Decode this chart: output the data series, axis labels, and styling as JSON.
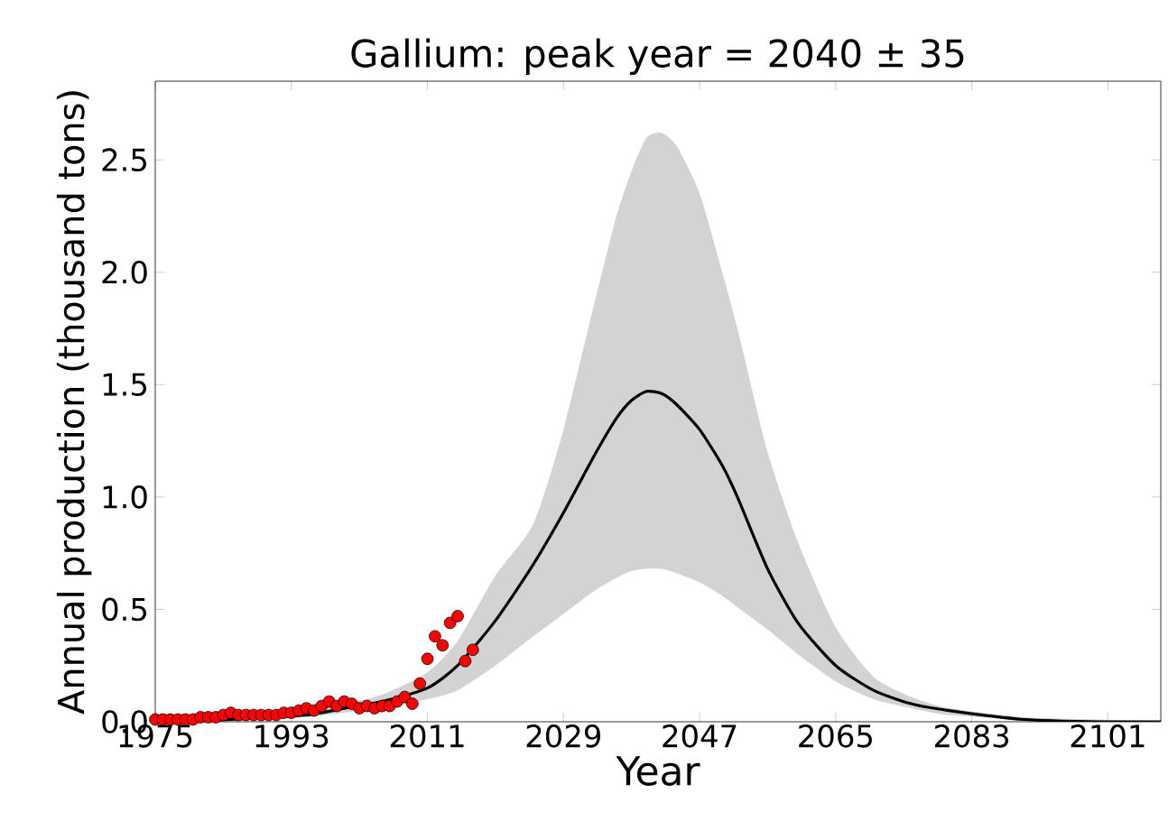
{
  "chart_data": {
    "type": "line",
    "title": "Gallium: peak year = 2040 ± 35",
    "xlabel": "Year",
    "ylabel": "Annual production (thousand tons)",
    "xlim": [
      1975,
      2108
    ],
    "ylim": [
      0,
      2.85
    ],
    "xticks": [
      1975,
      1993,
      2011,
      2029,
      2047,
      2065,
      2083,
      2101
    ],
    "yticks": [
      {
        "value": 0,
        "label": "0.0"
      },
      {
        "value": 0.5,
        "label": "0.5"
      },
      {
        "value": 1,
        "label": "1.0"
      },
      {
        "value": 1.5,
        "label": "1.5"
      },
      {
        "value": 2,
        "label": "2.0"
      },
      {
        "value": 2.5,
        "label": "2.5"
      }
    ],
    "grid": false,
    "series": [
      {
        "color": "#000000",
        "marker": "none",
        "line_style": "solid",
        "x": [
          1975,
          1985,
          1995,
          2000,
          2005,
          2011,
          2015,
          2020,
          2025,
          2029,
          2033,
          2036,
          2038,
          2040,
          2042,
          2044,
          2047,
          2050,
          2052,
          2056,
          2060,
          2065,
          2070,
          2075,
          2080,
          2090,
          2100,
          2108
        ],
        "values": [
          0.0,
          0.01,
          0.03,
          0.06,
          0.09,
          0.15,
          0.25,
          0.45,
          0.7,
          0.93,
          1.18,
          1.35,
          1.43,
          1.47,
          1.46,
          1.41,
          1.3,
          1.14,
          1.0,
          0.68,
          0.44,
          0.25,
          0.14,
          0.08,
          0.05,
          0.01,
          0.0,
          0.0
        ],
        "upper": [
          0.0,
          0.02,
          0.05,
          0.08,
          0.12,
          0.22,
          0.36,
          0.65,
          0.88,
          1.3,
          1.85,
          2.25,
          2.45,
          2.6,
          2.62,
          2.56,
          2.35,
          2.0,
          1.75,
          1.2,
          0.8,
          0.42,
          0.2,
          0.11,
          0.06,
          0.02,
          0.01,
          0.0
        ],
        "lower": [
          0.0,
          0.01,
          0.02,
          0.04,
          0.06,
          0.1,
          0.14,
          0.25,
          0.38,
          0.48,
          0.58,
          0.64,
          0.67,
          0.68,
          0.68,
          0.66,
          0.62,
          0.56,
          0.51,
          0.41,
          0.3,
          0.18,
          0.1,
          0.06,
          0.03,
          0.01,
          0.0,
          0.0
        ]
      },
      {
        "type": "scatter",
        "color": "#ff0000",
        "marker": "circle",
        "x": [
          1975,
          1976,
          1977,
          1978,
          1979,
          1980,
          1981,
          1982,
          1983,
          1984,
          1985,
          1986,
          1987,
          1988,
          1989,
          1990,
          1991,
          1992,
          1993,
          1994,
          1995,
          1996,
          1997,
          1998,
          1999,
          2000,
          2001,
          2002,
          2003,
          2004,
          2005,
          2006,
          2007,
          2008,
          2009,
          2010,
          2011,
          2012,
          2013,
          2014,
          2015,
          2016,
          2017
        ],
        "values": [
          0.01,
          0.01,
          0.01,
          0.01,
          0.01,
          0.01,
          0.02,
          0.02,
          0.02,
          0.03,
          0.04,
          0.03,
          0.03,
          0.03,
          0.03,
          0.03,
          0.03,
          0.04,
          0.04,
          0.05,
          0.06,
          0.05,
          0.07,
          0.09,
          0.07,
          0.09,
          0.08,
          0.06,
          0.07,
          0.06,
          0.07,
          0.07,
          0.09,
          0.11,
          0.08,
          0.17,
          0.28,
          0.38,
          0.34,
          0.44,
          0.47,
          0.27,
          0.32
        ]
      }
    ]
  }
}
